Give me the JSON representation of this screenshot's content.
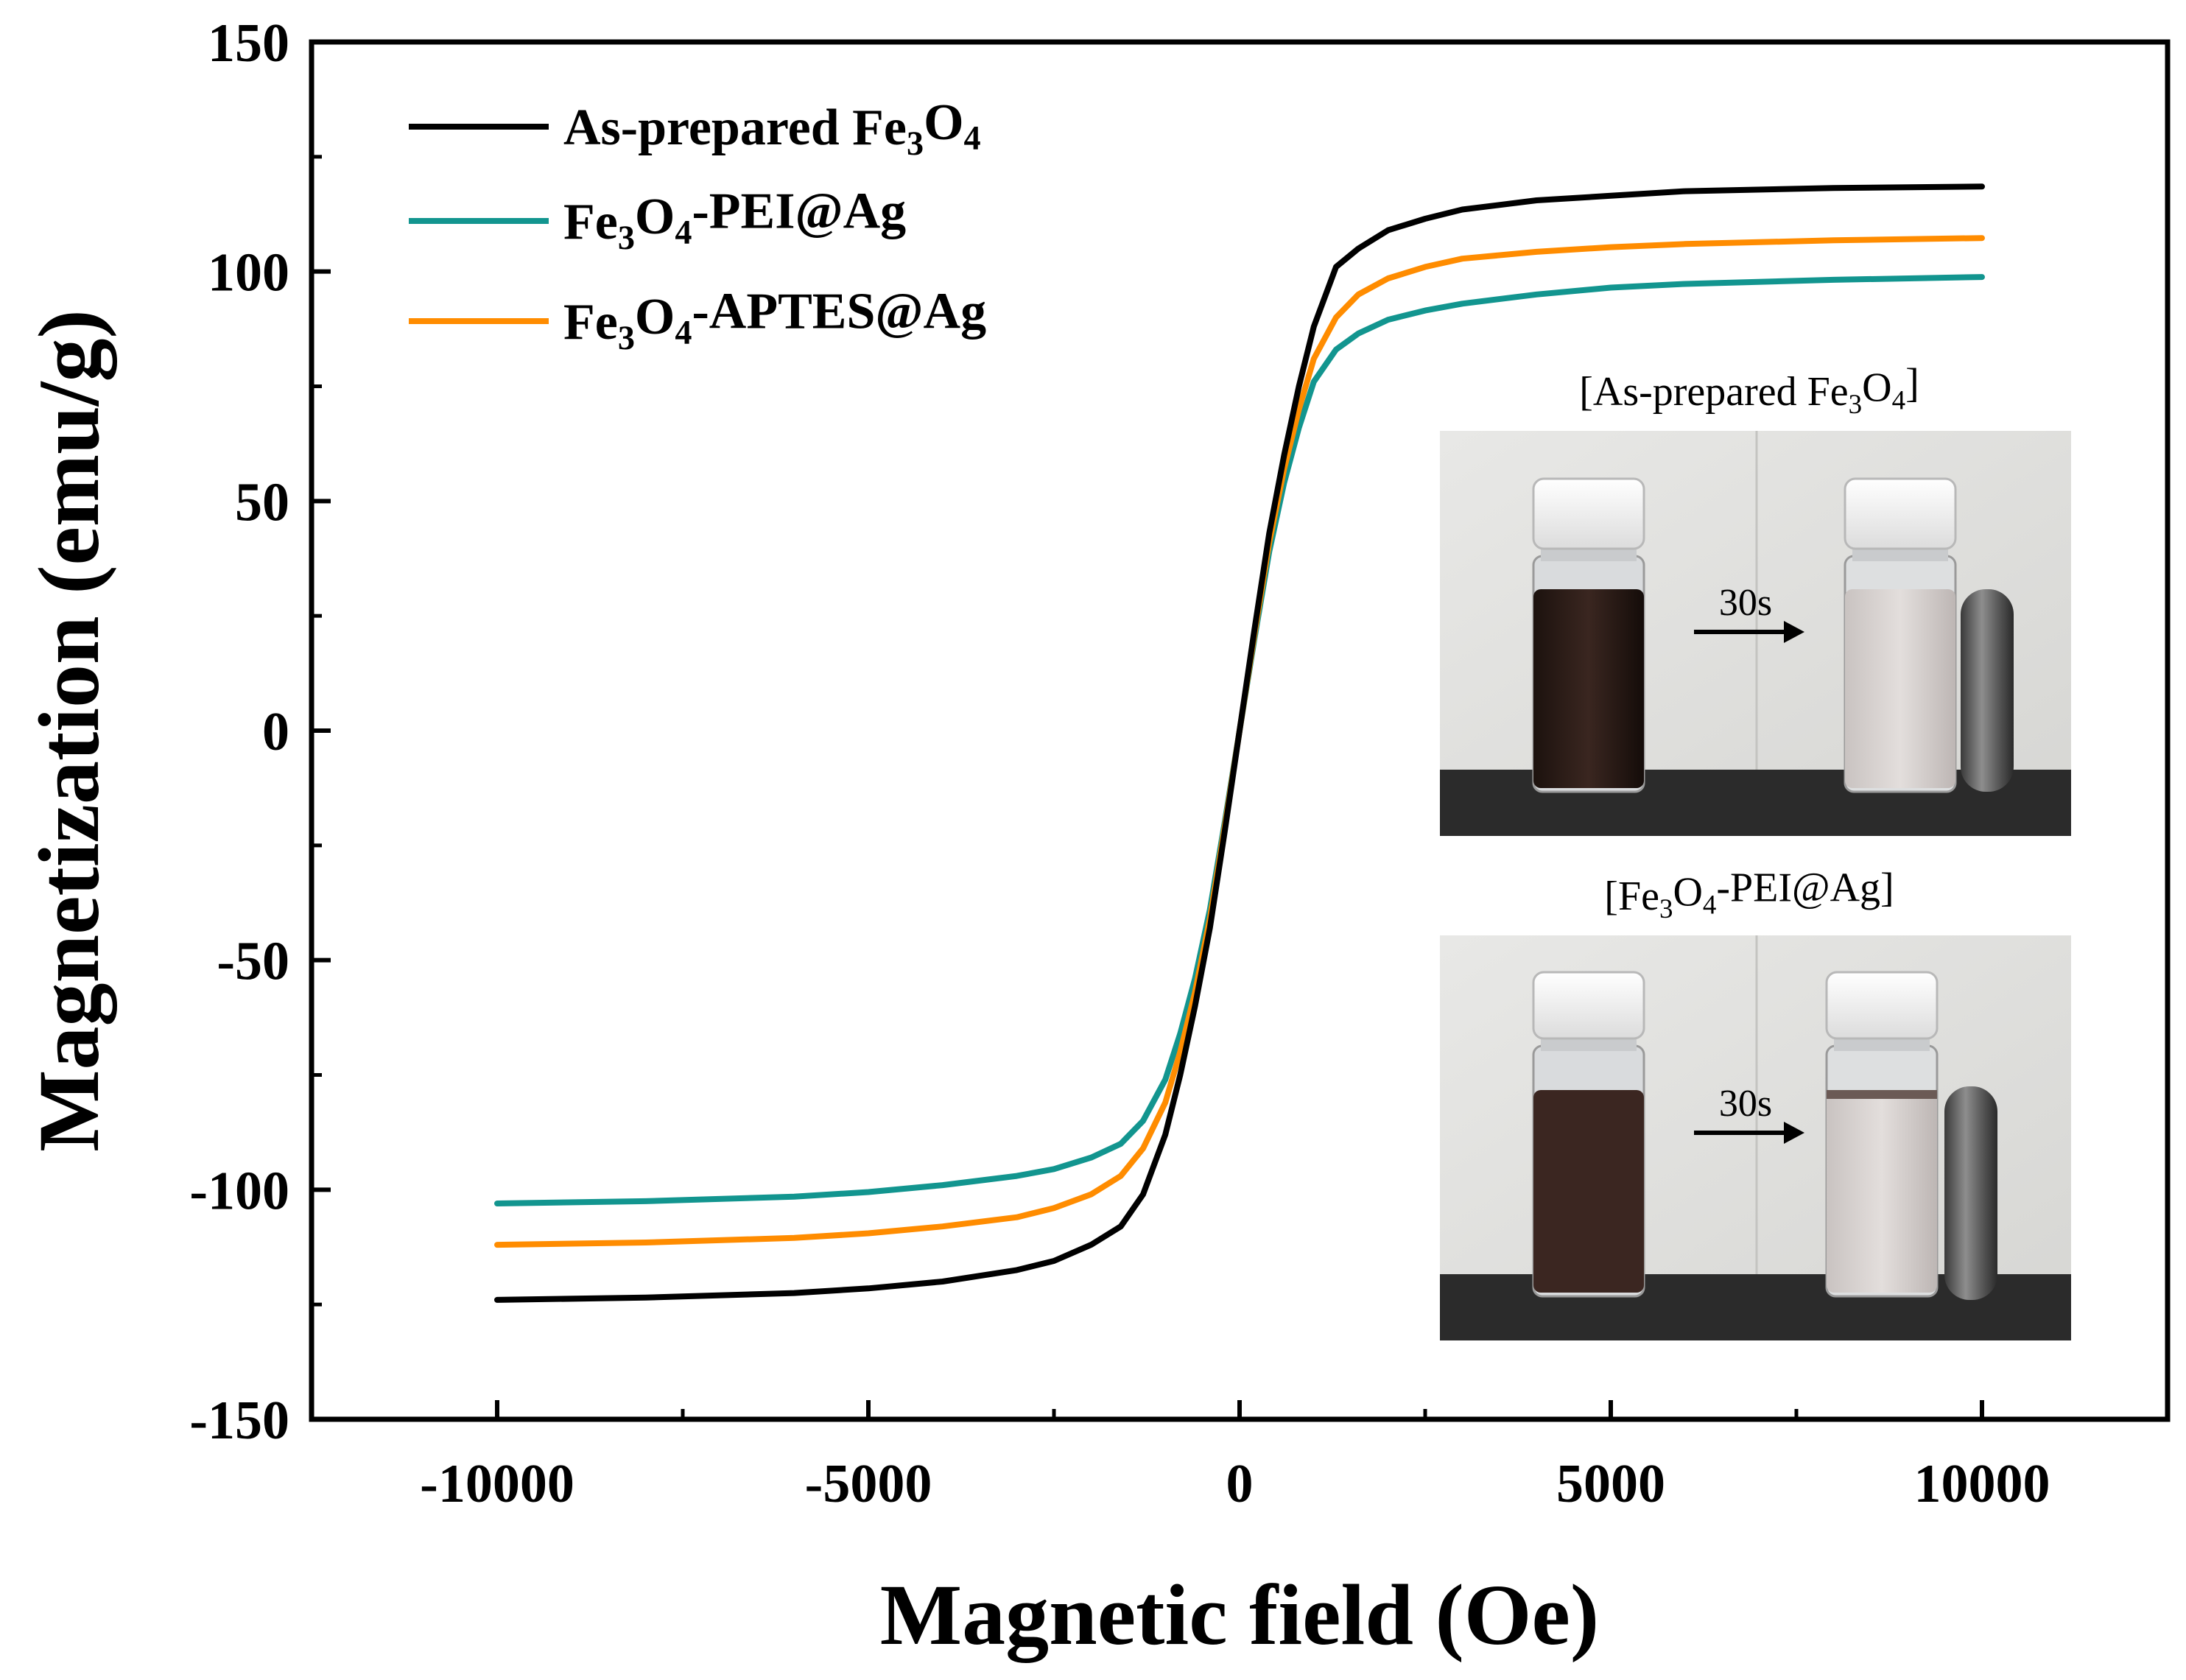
{
  "chart_data": {
    "type": "line",
    "xlabel": "Magnetic field (Oe)",
    "ylabel": "Magnetization (emu/g)",
    "xlim": [
      -12500,
      12500
    ],
    "ylim": [
      -150,
      150
    ],
    "x_ticks": [
      -10000,
      -5000,
      0,
      5000,
      10000
    ],
    "x_tick_labels": [
      "-10000",
      "-5000",
      "0",
      "5000",
      "10000"
    ],
    "y_ticks": [
      -150,
      -100,
      -50,
      0,
      50,
      100,
      150
    ],
    "y_tick_labels": [
      "-150",
      "-100",
      "-50",
      "0",
      "50",
      "100",
      "150"
    ],
    "legend_position": "top-left",
    "series": [
      {
        "name": "As-prepared Fe3O4",
        "legend_parts": [
          {
            "text": "As-prepared Fe"
          },
          {
            "text": "3",
            "sub": true
          },
          {
            "text": "O"
          },
          {
            "text": "4",
            "sub": true
          }
        ],
        "color": "#000000",
        "x": [
          -10000,
          -8000,
          -6000,
          -5000,
          -4000,
          -3000,
          -2500,
          -2000,
          -1600,
          -1300,
          -1000,
          -800,
          -600,
          -400,
          -200,
          0,
          200,
          400,
          600,
          800,
          1000,
          1300,
          1600,
          2000,
          2500,
          3000,
          4000,
          5000,
          6000,
          8000,
          10000
        ],
        "y": [
          -124,
          -123.5,
          -122.5,
          -121.5,
          -120,
          -117.5,
          -115.5,
          -112,
          -108,
          -101,
          -88,
          -75,
          -60,
          -43,
          -22,
          0,
          22,
          43,
          60,
          75,
          88,
          101,
          105,
          109,
          111.5,
          113.5,
          115.5,
          116.5,
          117.5,
          118.2,
          118.5
        ]
      },
      {
        "name": "Fe3O4-PEI@Ag",
        "legend_parts": [
          {
            "text": "Fe"
          },
          {
            "text": "3",
            "sub": true
          },
          {
            "text": "O"
          },
          {
            "text": "4",
            "sub": true
          },
          {
            "text": "-PEI@Ag"
          }
        ],
        "color": "#12958f",
        "x": [
          -10000,
          -8000,
          -6000,
          -5000,
          -4000,
          -3000,
          -2500,
          -2000,
          -1600,
          -1300,
          -1000,
          -800,
          -600,
          -400,
          -200,
          0,
          200,
          400,
          600,
          800,
          1000,
          1300,
          1600,
          2000,
          2500,
          3000,
          4000,
          5000,
          6000,
          8000,
          10000
        ],
        "y": [
          -103,
          -102.5,
          -101.5,
          -100.5,
          -99,
          -97,
          -95.5,
          -93,
          -90,
          -85,
          -76,
          -66,
          -54,
          -39,
          -20,
          0,
          20,
          39,
          54,
          66,
          76,
          83,
          86.5,
          89.5,
          91.5,
          93,
          95,
          96.5,
          97.3,
          98.2,
          98.8
        ]
      },
      {
        "name": "Fe3O4-APTES@Ag",
        "legend_parts": [
          {
            "text": "Fe"
          },
          {
            "text": "3",
            "sub": true
          },
          {
            "text": "O"
          },
          {
            "text": "4",
            "sub": true
          },
          {
            "text": "-APTES@Ag"
          }
        ],
        "color": "#ff8c00",
        "x": [
          -10000,
          -8000,
          -6000,
          -5000,
          -4000,
          -3000,
          -2500,
          -2000,
          -1600,
          -1300,
          -1000,
          -800,
          -600,
          -400,
          -200,
          0,
          200,
          400,
          600,
          800,
          1000,
          1300,
          1600,
          2000,
          2500,
          3000,
          4000,
          5000,
          6000,
          8000,
          10000
        ],
        "y": [
          -112,
          -111.5,
          -110.5,
          -109.5,
          -108,
          -106,
          -104,
          -101,
          -97,
          -91,
          -81,
          -70,
          -57,
          -41,
          -21,
          0,
          21,
          41,
          57,
          70,
          81,
          90,
          95,
          98.5,
          101,
          102.8,
          104.3,
          105.3,
          106,
          106.8,
          107.3
        ]
      }
    ]
  },
  "insets": [
    {
      "title_parts": [
        {
          "text": "[As-prepared Fe"
        },
        {
          "text": "3",
          "sub": true
        },
        {
          "text": "O"
        },
        {
          "text": "4",
          "sub": true
        },
        {
          "text": "]"
        }
      ],
      "arrow_label": "30s"
    },
    {
      "title_parts": [
        {
          "text": "[Fe"
        },
        {
          "text": "3",
          "sub": true
        },
        {
          "text": "O"
        },
        {
          "text": "4",
          "sub": true
        },
        {
          "text": "-PEI@Ag]"
        }
      ],
      "arrow_label": "30s"
    }
  ]
}
